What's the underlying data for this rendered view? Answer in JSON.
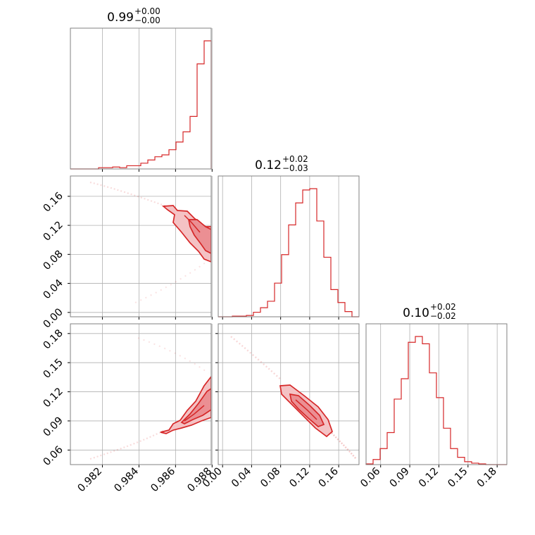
{
  "colors": {
    "line": "#d62728",
    "fill_light": "#f4c2c4",
    "fill_mid": "#eb8f93",
    "grid": "#b0b0b0",
    "frame": "#808080",
    "text": "#000000"
  },
  "chart_data": {
    "type": "corner",
    "parameters": [
      {
        "ticks": [
          "0.982",
          "0.984",
          "0.986",
          "0.988"
        ],
        "range": [
          0.98025,
          0.98795
        ],
        "title_value": "0.99",
        "title_plus": "+0.00",
        "title_minus": "−0.00"
      },
      {
        "ticks": [
          "0.00",
          "0.04",
          "0.08",
          "0.12",
          "0.16"
        ],
        "range": [
          -0.006,
          0.188
        ],
        "title_value": "0.12",
        "title_plus": "+0.02",
        "title_minus": "−0.03"
      },
      {
        "ticks": [
          "0.06",
          "0.09",
          "0.12",
          "0.15",
          "0.18"
        ],
        "range": [
          0.045,
          0.19
        ],
        "title_value": "0.10",
        "title_plus": "+0.02",
        "title_minus": "−0.02"
      }
    ],
    "histograms": [
      {
        "param": 0,
        "bin_start": 0.98025,
        "bin_width": 0.000385,
        "values": [
          0,
          0,
          0,
          0,
          0.01,
          0.01,
          0.015,
          0.01,
          0.025,
          0.025,
          0.045,
          0.07,
          0.095,
          0.11,
          0.15,
          0.21,
          0.29,
          0.41,
          0.82,
          1.0
        ]
      },
      {
        "param": 1,
        "bin_start": -0.006,
        "bin_width": 0.0097,
        "values": [
          0,
          0,
          0.005,
          0.005,
          0.01,
          0.035,
          0.07,
          0.12,
          0.26,
          0.48,
          0.71,
          0.88,
          0.98,
          0.99,
          0.74,
          0.46,
          0.21,
          0.11,
          0.04,
          0
        ]
      },
      {
        "param": 2,
        "bin_start": 0.045,
        "bin_width": 0.00725,
        "values": [
          0.005,
          0.035,
          0.11,
          0.22,
          0.45,
          0.59,
          0.84,
          0.88,
          0.83,
          0.63,
          0.46,
          0.25,
          0.11,
          0.05,
          0.02,
          0.01,
          0.005,
          0,
          0,
          0
        ]
      }
    ]
  }
}
